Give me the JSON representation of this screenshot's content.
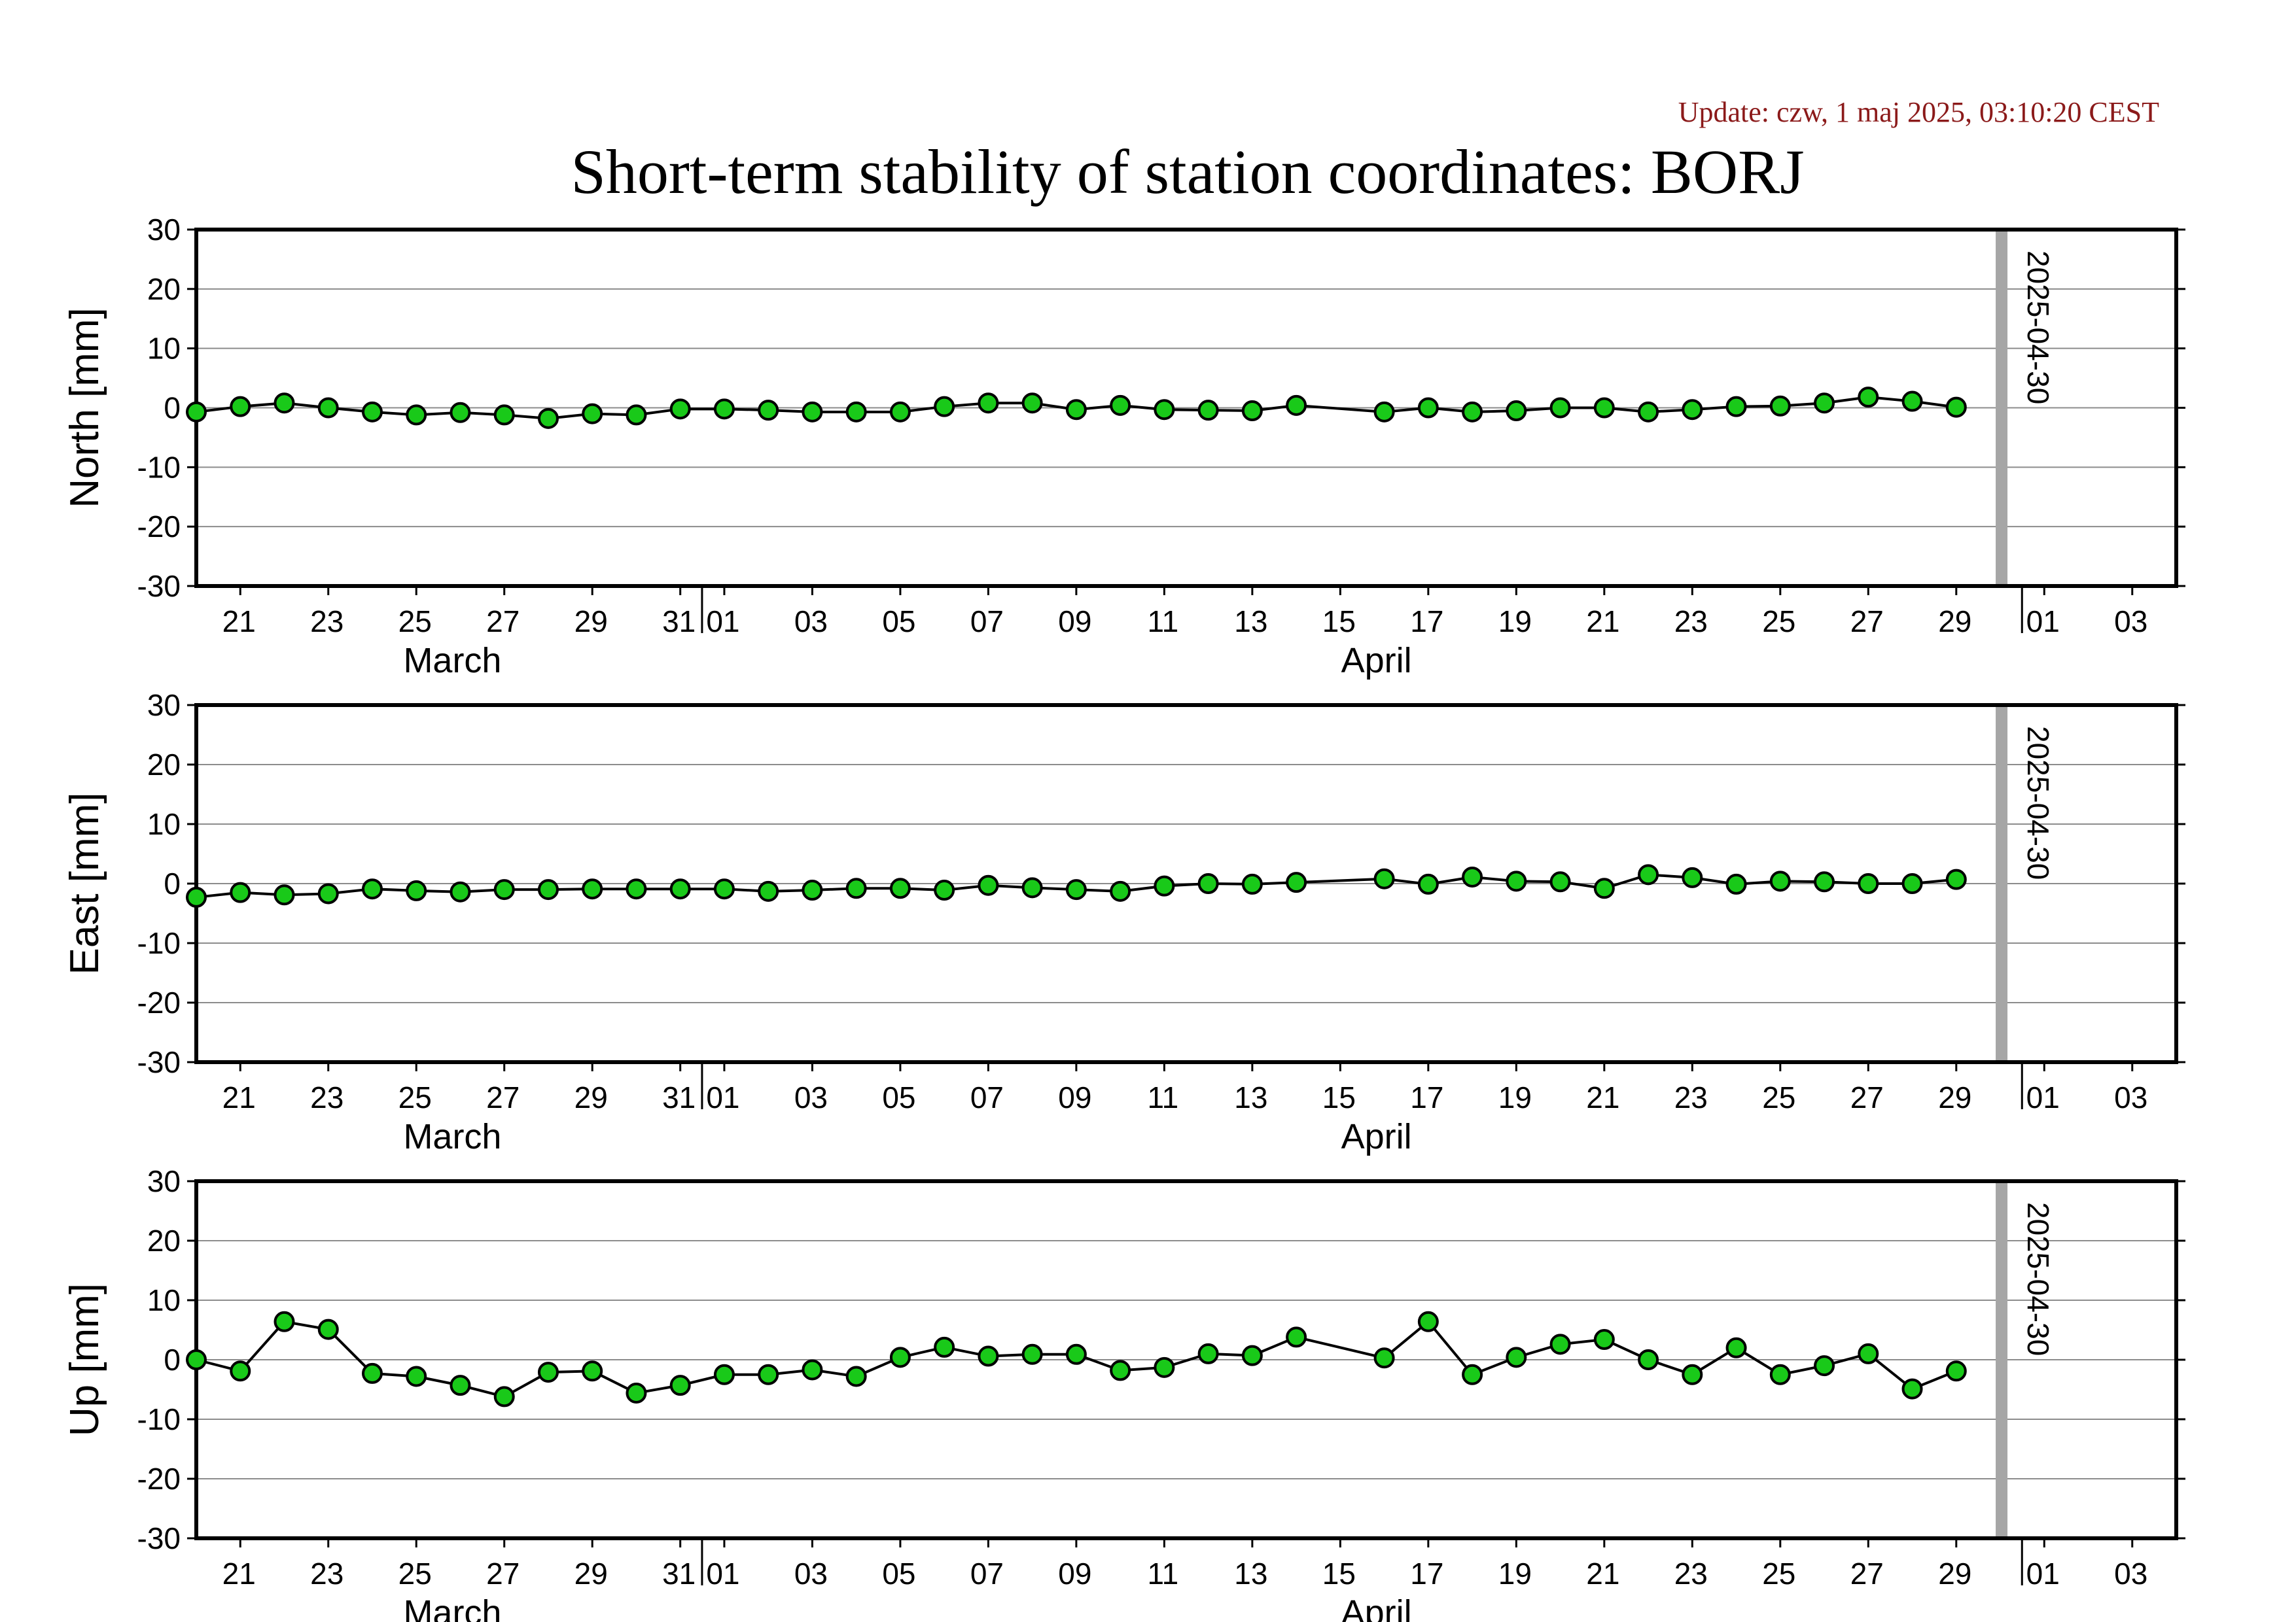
{
  "header": {
    "update": "Update: czw, 1 maj 2025, 03:10:20 CEST",
    "title": "Short-term stability of station coordinates: BORJ",
    "update_color": "#8b1a1a"
  },
  "colors": {
    "marker_fill": "#19c919",
    "marker_stroke": "#000000",
    "line": "#000000",
    "grid": "#8c8c8c",
    "vline": "#a6a6a6"
  },
  "chart_data": [
    {
      "type": "line",
      "ylabel": "North [mm]",
      "ylim": [
        -30,
        30
      ],
      "yticks": [
        30,
        20,
        10,
        0,
        -10,
        -20,
        -30
      ],
      "grid": true,
      "x_range": [
        "2025-03-20",
        "2025-05-04"
      ],
      "x_ticks": [
        "2025-03-21",
        "2025-03-23",
        "2025-03-25",
        "2025-03-27",
        "2025-03-29",
        "2025-03-31",
        "2025-04-01",
        "2025-04-03",
        "2025-04-05",
        "2025-04-07",
        "2025-04-09",
        "2025-04-11",
        "2025-04-13",
        "2025-04-15",
        "2025-04-17",
        "2025-04-19",
        "2025-04-21",
        "2025-04-23",
        "2025-04-25",
        "2025-04-27",
        "2025-04-29",
        "2025-05-01",
        "2025-05-03"
      ],
      "x_tick_labels": [
        "21",
        "23",
        "25",
        "27",
        "29",
        "31",
        "01",
        "03",
        "05",
        "07",
        "09",
        "11",
        "13",
        "15",
        "17",
        "19",
        "21",
        "23",
        "25",
        "27",
        "29",
        "01",
        "03"
      ],
      "months": [
        {
          "label": "March",
          "date": "2025-03-26"
        },
        {
          "label": "April",
          "date": "2025-04-16"
        }
      ],
      "vline": {
        "date": "2025-04-30",
        "label": "2025-04-30"
      },
      "x": [
        "2025-03-20",
        "2025-03-21",
        "2025-03-22",
        "2025-03-23",
        "2025-03-24",
        "2025-03-25",
        "2025-03-26",
        "2025-03-27",
        "2025-03-28",
        "2025-03-29",
        "2025-03-30",
        "2025-03-31",
        "2025-04-01",
        "2025-04-02",
        "2025-04-03",
        "2025-04-04",
        "2025-04-05",
        "2025-04-06",
        "2025-04-07",
        "2025-04-08",
        "2025-04-09",
        "2025-04-10",
        "2025-04-11",
        "2025-04-12",
        "2025-04-13",
        "2025-04-14",
        "2025-04-16",
        "2025-04-17",
        "2025-04-18",
        "2025-04-19",
        "2025-04-20",
        "2025-04-21",
        "2025-04-22",
        "2025-04-23",
        "2025-04-24",
        "2025-04-25",
        "2025-04-26",
        "2025-04-27",
        "2025-04-28",
        "2025-04-29"
      ],
      "values": [
        -0.7,
        0.2,
        0.8,
        0.0,
        -0.7,
        -1.2,
        -0.8,
        -1.2,
        -1.8,
        -1.0,
        -1.2,
        -0.2,
        -0.2,
        -0.4,
        -0.7,
        -0.7,
        -0.7,
        0.2,
        0.8,
        0.8,
        -0.3,
        0.4,
        -0.3,
        -0.4,
        -0.5,
        0.4,
        -0.7,
        0.0,
        -0.7,
        -0.5,
        0.0,
        0.0,
        -0.7,
        -0.3,
        0.2,
        0.3,
        0.8,
        1.8,
        1.1,
        0.1
      ]
    },
    {
      "type": "line",
      "ylabel": "East [mm]",
      "ylim": [
        -30,
        30
      ],
      "yticks": [
        30,
        20,
        10,
        0,
        -10,
        -20,
        -30
      ],
      "grid": true,
      "x_range": [
        "2025-03-20",
        "2025-05-04"
      ],
      "x_ticks": [
        "2025-03-21",
        "2025-03-23",
        "2025-03-25",
        "2025-03-27",
        "2025-03-29",
        "2025-03-31",
        "2025-04-01",
        "2025-04-03",
        "2025-04-05",
        "2025-04-07",
        "2025-04-09",
        "2025-04-11",
        "2025-04-13",
        "2025-04-15",
        "2025-04-17",
        "2025-04-19",
        "2025-04-21",
        "2025-04-23",
        "2025-04-25",
        "2025-04-27",
        "2025-04-29",
        "2025-05-01",
        "2025-05-03"
      ],
      "x_tick_labels": [
        "21",
        "23",
        "25",
        "27",
        "29",
        "31",
        "01",
        "03",
        "05",
        "07",
        "09",
        "11",
        "13",
        "15",
        "17",
        "19",
        "21",
        "23",
        "25",
        "27",
        "29",
        "01",
        "03"
      ],
      "months": [
        {
          "label": "March",
          "date": "2025-03-26"
        },
        {
          "label": "April",
          "date": "2025-04-16"
        }
      ],
      "vline": {
        "date": "2025-04-30",
        "label": "2025-04-30"
      },
      "x": [
        "2025-03-20",
        "2025-03-21",
        "2025-03-22",
        "2025-03-23",
        "2025-03-24",
        "2025-03-25",
        "2025-03-26",
        "2025-03-27",
        "2025-03-28",
        "2025-03-29",
        "2025-03-30",
        "2025-03-31",
        "2025-04-01",
        "2025-04-02",
        "2025-04-03",
        "2025-04-04",
        "2025-04-05",
        "2025-04-06",
        "2025-04-07",
        "2025-04-08",
        "2025-04-09",
        "2025-04-10",
        "2025-04-11",
        "2025-04-12",
        "2025-04-13",
        "2025-04-14",
        "2025-04-16",
        "2025-04-17",
        "2025-04-18",
        "2025-04-19",
        "2025-04-20",
        "2025-04-21",
        "2025-04-22",
        "2025-04-23",
        "2025-04-24",
        "2025-04-25",
        "2025-04-26",
        "2025-04-27",
        "2025-04-28",
        "2025-04-29"
      ],
      "values": [
        -2.3,
        -1.5,
        -1.9,
        -1.7,
        -0.9,
        -1.2,
        -1.4,
        -1.0,
        -1.0,
        -0.9,
        -0.9,
        -0.9,
        -0.9,
        -1.3,
        -1.1,
        -0.8,
        -0.8,
        -1.1,
        -0.3,
        -0.7,
        -1.0,
        -1.3,
        -0.4,
        0.0,
        -0.1,
        0.2,
        0.8,
        -0.1,
        1.1,
        0.4,
        0.3,
        -0.8,
        1.5,
        1.0,
        -0.1,
        0.4,
        0.3,
        0.0,
        0.0,
        0.7
      ]
    },
    {
      "type": "line",
      "ylabel": "Up [mm]",
      "ylim": [
        -30,
        30
      ],
      "yticks": [
        30,
        20,
        10,
        0,
        -10,
        -20,
        -30
      ],
      "grid": true,
      "x_range": [
        "2025-03-20",
        "2025-05-04"
      ],
      "x_ticks": [
        "2025-03-21",
        "2025-03-23",
        "2025-03-25",
        "2025-03-27",
        "2025-03-29",
        "2025-03-31",
        "2025-04-01",
        "2025-04-03",
        "2025-04-05",
        "2025-04-07",
        "2025-04-09",
        "2025-04-11",
        "2025-04-13",
        "2025-04-15",
        "2025-04-17",
        "2025-04-19",
        "2025-04-21",
        "2025-04-23",
        "2025-04-25",
        "2025-04-27",
        "2025-04-29",
        "2025-05-01",
        "2025-05-03"
      ],
      "x_tick_labels": [
        "21",
        "23",
        "25",
        "27",
        "29",
        "31",
        "01",
        "03",
        "05",
        "07",
        "09",
        "11",
        "13",
        "15",
        "17",
        "19",
        "21",
        "23",
        "25",
        "27",
        "29",
        "01",
        "03"
      ],
      "months": [
        {
          "label": "March",
          "date": "2025-03-26"
        },
        {
          "label": "April",
          "date": "2025-04-16"
        }
      ],
      "vline": {
        "date": "2025-04-30",
        "label": "2025-04-30"
      },
      "x": [
        "2025-03-20",
        "2025-03-21",
        "2025-03-22",
        "2025-03-23",
        "2025-03-24",
        "2025-03-25",
        "2025-03-26",
        "2025-03-27",
        "2025-03-28",
        "2025-03-29",
        "2025-03-30",
        "2025-03-31",
        "2025-04-01",
        "2025-04-02",
        "2025-04-03",
        "2025-04-04",
        "2025-04-05",
        "2025-04-06",
        "2025-04-07",
        "2025-04-08",
        "2025-04-09",
        "2025-04-10",
        "2025-04-11",
        "2025-04-12",
        "2025-04-13",
        "2025-04-14",
        "2025-04-16",
        "2025-04-17",
        "2025-04-18",
        "2025-04-19",
        "2025-04-20",
        "2025-04-21",
        "2025-04-22",
        "2025-04-23",
        "2025-04-24",
        "2025-04-25",
        "2025-04-26",
        "2025-04-27",
        "2025-04-28",
        "2025-04-29"
      ],
      "values": [
        0.0,
        -1.9,
        6.4,
        5.1,
        -2.3,
        -2.8,
        -4.3,
        -6.2,
        -2.1,
        -1.9,
        -5.6,
        -4.3,
        -2.5,
        -2.5,
        -1.7,
        -2.8,
        0.4,
        2.1,
        0.6,
        0.9,
        0.9,
        -1.8,
        -1.3,
        1.0,
        0.7,
        3.8,
        0.3,
        6.4,
        -2.5,
        0.4,
        2.6,
        3.4,
        0.0,
        -2.5,
        2.0,
        -2.5,
        -1.0,
        1.0,
        -4.9,
        -1.9
      ]
    }
  ]
}
